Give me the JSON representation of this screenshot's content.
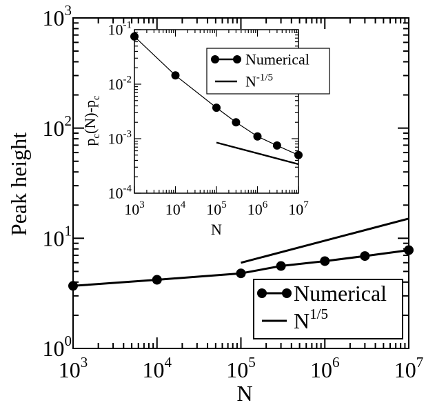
{
  "chart_data": [
    {
      "type": "line",
      "xlabel": "N",
      "ylabel": "Peak height",
      "xscale": "log",
      "yscale": "log",
      "xlim": [
        1000,
        10000000
      ],
      "ylim": [
        1,
        1000
      ],
      "x_ticks": [
        {
          "value": 1000,
          "base": "10",
          "exp": "3"
        },
        {
          "value": 10000,
          "base": "10",
          "exp": "4"
        },
        {
          "value": 100000,
          "base": "10",
          "exp": "5"
        },
        {
          "value": 1000000,
          "base": "10",
          "exp": "6"
        },
        {
          "value": 10000000,
          "base": "10",
          "exp": "7"
        }
      ],
      "y_ticks": [
        {
          "value": 1,
          "base": "10",
          "exp": "0"
        },
        {
          "value": 10,
          "base": "10",
          "exp": "1"
        },
        {
          "value": 100,
          "base": "10",
          "exp": "2"
        },
        {
          "value": 1000,
          "base": "10",
          "exp": "3"
        }
      ],
      "grid": false,
      "legend_position": "bottom-right",
      "series": [
        {
          "name": "Numerical",
          "style": "line+markers",
          "x": [
            1000,
            10000,
            100000,
            300000,
            1000000,
            3000000,
            10000000
          ],
          "y": [
            3.7,
            4.2,
            4.8,
            5.6,
            6.2,
            6.9,
            7.8
          ]
        },
        {
          "name": "N",
          "name_sup": "1/5",
          "style": "line",
          "x": [
            100000,
            10000000
          ],
          "y": [
            6.0,
            15.1
          ]
        }
      ]
    },
    {
      "type": "line",
      "xlabel": "N",
      "ylabel_parts": {
        "a": "p",
        "a_sub": "c",
        "b": "(N)-p",
        "b_sub": "c"
      },
      "xscale": "log",
      "yscale": "log",
      "xlim": [
        1000,
        10000000
      ],
      "ylim": [
        0.0001,
        0.1
      ],
      "x_ticks": [
        {
          "value": 1000,
          "base": "10",
          "exp": "3"
        },
        {
          "value": 10000,
          "base": "10",
          "exp": "4"
        },
        {
          "value": 100000,
          "base": "10",
          "exp": "5"
        },
        {
          "value": 1000000,
          "base": "10",
          "exp": "6"
        },
        {
          "value": 10000000,
          "base": "10",
          "exp": "7"
        }
      ],
      "y_ticks": [
        {
          "value": 0.0001,
          "base": "10",
          "exp": "-4"
        },
        {
          "value": 0.001,
          "base": "10",
          "exp": "-3"
        },
        {
          "value": 0.01,
          "base": "10",
          "exp": "-2"
        },
        {
          "value": 0.1,
          "base": "10",
          "exp": "-1"
        }
      ],
      "grid": false,
      "legend_position": "top-right",
      "series": [
        {
          "name": "Numerical",
          "style": "line+markers",
          "x": [
            1000,
            10000,
            100000,
            300000,
            1000000,
            3000000,
            10000000
          ],
          "y": [
            0.075,
            0.0145,
            0.0037,
            0.002,
            0.0011,
            0.00075,
            0.0005
          ]
        },
        {
          "name": "N",
          "name_sup": "-1/5",
          "style": "line",
          "x": [
            100000,
            10000000
          ],
          "y": [
            0.00085,
            0.00034
          ]
        }
      ]
    }
  ]
}
